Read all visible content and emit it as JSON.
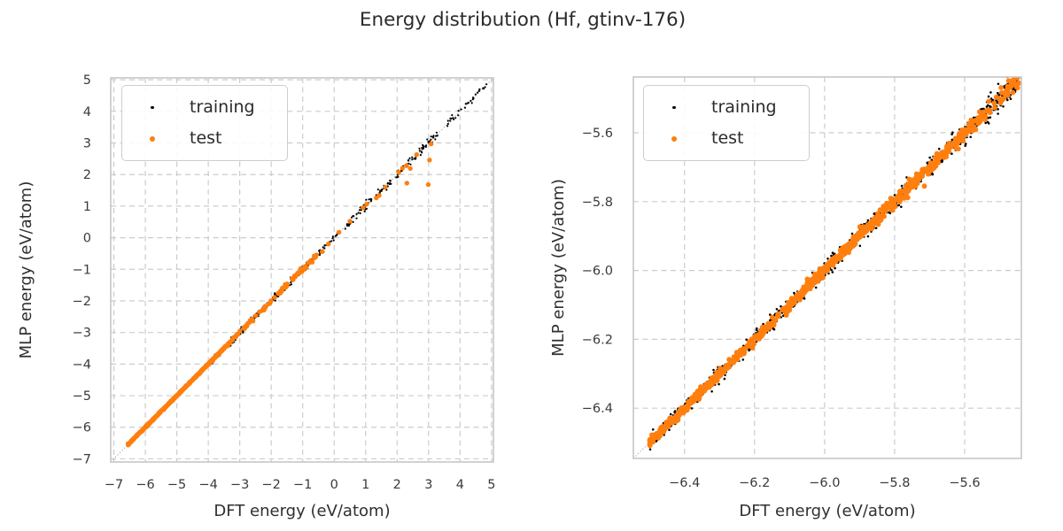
{
  "title": "Energy distribution (Hf, gtinv-176)",
  "legend": {
    "items": [
      {
        "label": "training"
      },
      {
        "label": "test"
      }
    ]
  },
  "style": {
    "background": "#ffffff",
    "training_color": "#000000",
    "test_color": "#ff7f0e",
    "grid_color": "#cccccc",
    "frame_color": "#c6c6c6",
    "identity_line_color": "#999999",
    "title_color": "#2b2b2b",
    "label_color": "#2f2f2f",
    "tick_color": "#3a3a3a"
  },
  "chart_data": [
    {
      "type": "scatter",
      "subplot": "full-range",
      "xlabel": "DFT energy (eV/atom)",
      "ylabel": "MLP energy (eV/atom)",
      "xlim": [
        -7.1,
        5.06
      ],
      "ylim": [
        -7.1,
        5.06
      ],
      "grid": true,
      "identity_line": true,
      "legend_position": "upper left",
      "xticks": [
        {
          "v": -7,
          "label": "−7"
        },
        {
          "v": -6,
          "label": "−6"
        },
        {
          "v": -5,
          "label": "−5"
        },
        {
          "v": -4,
          "label": "−4"
        },
        {
          "v": -3,
          "label": "−3"
        },
        {
          "v": -2,
          "label": "−2"
        },
        {
          "v": -1,
          "label": "−1"
        },
        {
          "v": 0,
          "label": "0"
        },
        {
          "v": 1,
          "label": "1"
        },
        {
          "v": 2,
          "label": "2"
        },
        {
          "v": 3,
          "label": "3"
        },
        {
          "v": 4,
          "label": "4"
        },
        {
          "v": 5,
          "label": "5"
        }
      ],
      "yticks": [
        {
          "v": 5,
          "label": "5"
        },
        {
          "v": 4,
          "label": "4"
        },
        {
          "v": 3,
          "label": "3"
        },
        {
          "v": 2,
          "label": "2"
        },
        {
          "v": 1,
          "label": "1"
        },
        {
          "v": 0,
          "label": "0"
        },
        {
          "v": -1,
          "label": "−1"
        },
        {
          "v": -2,
          "label": "−2"
        },
        {
          "v": -3,
          "label": "−3"
        },
        {
          "v": -4,
          "label": "−4"
        },
        {
          "v": -5,
          "label": "−5"
        },
        {
          "v": -6,
          "label": "−6"
        },
        {
          "v": -7,
          "label": "−7"
        }
      ],
      "series": [
        {
          "name": "training",
          "color": "#000000",
          "marker_radius": 1.1,
          "seed": 20,
          "segments": [
            {
              "x0": -6.55,
              "x1": -3.35,
              "n": 520,
              "sigma": 0.015
            },
            {
              "x0": -4.3,
              "x1": -3.35,
              "n": 40,
              "sigma": 0.05
            },
            {
              "x0": -3.35,
              "x1": -2.5,
              "n": 62,
              "sigma": 0.045
            },
            {
              "x0": -2.5,
              "x1": -1.55,
              "n": 56,
              "sigma": 0.05
            },
            {
              "x0": -1.55,
              "x1": -0.85,
              "n": 44,
              "sigma": 0.05
            },
            {
              "x0": -0.85,
              "x1": -0.32,
              "n": 30,
              "sigma": 0.05
            },
            {
              "x0": -0.32,
              "x1": 0.12,
              "n": 18,
              "sigma": 0.05
            },
            {
              "x0": 0.28,
              "x1": 0.62,
              "n": 14,
              "sigma": 0.055
            },
            {
              "x0": 0.7,
              "x1": 1.18,
              "n": 24,
              "sigma": 0.06
            },
            {
              "x0": 1.3,
              "x1": 1.82,
              "n": 22,
              "sigma": 0.065
            },
            {
              "x0": 1.95,
              "x1": 2.6,
              "n": 26,
              "sigma": 0.07
            },
            {
              "x0": 2.6,
              "x1": 3.32,
              "n": 28,
              "sigma": 0.075
            },
            {
              "x0": 3.5,
              "x1": 4.05,
              "n": 11,
              "sigma": 0.06
            },
            {
              "x0": 4.08,
              "x1": 4.5,
              "n": 10,
              "sigma": 0.05
            },
            {
              "x0": 4.55,
              "x1": 4.88,
              "n": 9,
              "sigma": 0.045
            }
          ],
          "points": [
            [
              3.62,
              3.7
            ],
            [
              3.95,
              4.02
            ],
            [
              2.75,
              2.62
            ],
            [
              -2.95,
              -2.83
            ],
            [
              -3.18,
              -3.3
            ]
          ]
        },
        {
          "name": "test",
          "color": "#ff7f0e",
          "marker_radius": 2.7,
          "seed": 77,
          "segments": [
            {
              "x0": -6.55,
              "x1": -3.4,
              "n": 430,
              "sigma": 0.01
            },
            {
              "x0": -3.4,
              "x1": -2.55,
              "n": 30,
              "sigma": 0.025
            },
            {
              "x0": -2.55,
              "x1": -1.55,
              "n": 26,
              "sigma": 0.03
            },
            {
              "x0": -1.55,
              "x1": -0.95,
              "n": 18,
              "sigma": 0.035
            },
            {
              "x0": -0.95,
              "x1": -0.55,
              "n": 12,
              "sigma": 0.035
            }
          ],
          "points": [
            [
              -0.38,
              -0.44
            ],
            [
              -0.18,
              -0.2
            ],
            [
              0.15,
              0.17
            ],
            [
              0.5,
              0.52
            ],
            [
              0.92,
              0.95
            ],
            [
              1.03,
              1.06
            ],
            [
              1.34,
              1.26
            ],
            [
              1.43,
              1.34
            ],
            [
              1.62,
              1.6
            ],
            [
              2.05,
              2.07
            ],
            [
              2.17,
              2.2
            ],
            [
              2.3,
              2.28
            ],
            [
              2.42,
              2.19
            ],
            [
              2.31,
              1.73
            ],
            [
              2.62,
              2.63
            ],
            [
              2.99,
              1.68
            ],
            [
              3.03,
              2.46
            ],
            [
              3.08,
              2.97
            ]
          ]
        }
      ]
    },
    {
      "type": "scatter",
      "subplot": "zoomed-range",
      "xlabel": "DFT energy (eV/atom)",
      "ylabel": "MLP energy (eV/atom)",
      "xlim": [
        -6.546,
        -5.438
      ],
      "ylim": [
        -6.546,
        -5.438
      ],
      "grid": true,
      "identity_line": true,
      "legend_position": "upper left",
      "xticks": [
        {
          "v": -6.4,
          "label": "−6.4"
        },
        {
          "v": -6.2,
          "label": "−6.2"
        },
        {
          "v": -6.0,
          "label": "−6.0"
        },
        {
          "v": -5.8,
          "label": "−5.8"
        },
        {
          "v": -5.6,
          "label": "−5.6"
        }
      ],
      "yticks": [
        {
          "v": -5.6,
          "label": "−5.6"
        },
        {
          "v": -5.8,
          "label": "−5.8"
        },
        {
          "v": -6.0,
          "label": "−6.0"
        },
        {
          "v": -6.2,
          "label": "−6.2"
        },
        {
          "v": -6.4,
          "label": "−6.4"
        }
      ],
      "series": [
        {
          "name": "training",
          "color": "#000000",
          "marker_radius": 1.3,
          "seed": 5,
          "segments": [
            {
              "x0": -6.5,
              "x1": -6.2,
              "n": 260,
              "sigma": 0.01
            },
            {
              "x0": -6.2,
              "x1": -5.95,
              "n": 210,
              "sigma": 0.012
            },
            {
              "x0": -5.95,
              "x1": -5.7,
              "n": 200,
              "sigma": 0.013
            },
            {
              "x0": -5.7,
              "x1": -5.55,
              "n": 130,
              "sigma": 0.015
            },
            {
              "x0": -5.55,
              "x1": -5.44,
              "n": 115,
              "sigma": 0.018
            }
          ],
          "points": []
        },
        {
          "name": "test",
          "color": "#ff7f0e",
          "marker_radius": 2.9,
          "seed": 91,
          "segments": [
            {
              "x0": -6.5,
              "x1": -6.28,
              "n": 230,
              "sigma": 0.006
            },
            {
              "x0": -6.28,
              "x1": -6.17,
              "n": 70,
              "sigma": 0.007
            },
            {
              "x0": -6.17,
              "x1": -6.07,
              "n": 55,
              "sigma": 0.007
            },
            {
              "x0": -6.07,
              "x1": -5.94,
              "n": 110,
              "sigma": 0.008
            },
            {
              "x0": -5.94,
              "x1": -5.83,
              "n": 90,
              "sigma": 0.008
            },
            {
              "x0": -5.83,
              "x1": -5.72,
              "n": 95,
              "sigma": 0.009
            },
            {
              "x0": -5.72,
              "x1": -5.62,
              "n": 70,
              "sigma": 0.009
            },
            {
              "x0": -5.62,
              "x1": -5.53,
              "n": 55,
              "sigma": 0.01
            },
            {
              "x0": -5.53,
              "x1": -5.445,
              "n": 42,
              "sigma": 0.01
            }
          ],
          "points": [
            [
              -5.715,
              -5.755
            ]
          ]
        }
      ]
    }
  ]
}
